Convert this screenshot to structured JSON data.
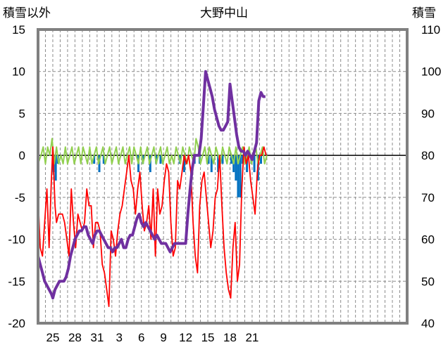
{
  "chart_data": {
    "type": "line",
    "title": "大野中山",
    "left_axis_label": "積雪以外",
    "right_axis_label": "積雪",
    "left_ylim": [
      -20,
      15
    ],
    "left_yticks": [
      15,
      10,
      5,
      0,
      -5,
      -10,
      -15,
      -20
    ],
    "right_ylim": [
      40,
      110
    ],
    "right_yticks": [
      110,
      100,
      90,
      80,
      70,
      60,
      50,
      40
    ],
    "x_range": [
      0,
      50
    ],
    "x_tick_labels": [
      "25",
      "28",
      "31",
      "3",
      "6",
      "9",
      "12",
      "15",
      "18",
      "21"
    ],
    "x_tick_positions": [
      2,
      5,
      8,
      11,
      14,
      17,
      20,
      23,
      26,
      29
    ],
    "grid": true,
    "series": [
      {
        "name": "temperature",
        "axis": "left",
        "color": "#ff0000",
        "type": "line",
        "x": [
          0.0,
          0.3,
          0.6,
          0.9,
          1.2,
          1.5,
          1.8,
          2.0,
          2.3,
          2.5,
          2.8,
          3.0,
          3.3,
          3.6,
          3.9,
          4.2,
          4.5,
          4.8,
          5.1,
          5.4,
          5.7,
          6.0,
          6.3,
          6.6,
          6.9,
          7.2,
          7.5,
          7.8,
          8.1,
          8.4,
          8.7,
          9.0,
          9.3,
          9.6,
          9.9,
          10.2,
          10.5,
          10.8,
          11.1,
          11.4,
          11.7,
          12.0,
          12.3,
          12.6,
          12.9,
          13.2,
          13.5,
          13.8,
          14.1,
          14.4,
          14.7,
          15.0,
          15.3,
          15.6,
          15.9,
          16.2,
          16.5,
          16.8,
          17.1,
          17.4,
          17.7,
          18.0,
          18.3,
          18.6,
          18.9,
          19.2,
          19.5,
          19.8,
          20.1,
          20.4,
          20.7,
          21.0,
          21.3,
          21.6,
          21.9,
          22.2,
          22.5,
          22.8,
          23.1,
          23.4,
          23.7,
          24.0,
          24.3,
          24.6,
          24.9,
          25.2,
          25.5,
          25.8,
          26.1,
          26.4,
          26.7,
          27.0,
          27.3,
          27.6,
          27.9,
          28.2,
          28.5,
          28.8,
          29.1,
          29.4,
          29.7,
          30.0,
          30.3,
          30.6,
          30.9
        ],
        "y": [
          -5,
          -11,
          -12,
          -8,
          -4,
          -11,
          -3,
          1,
          -6,
          -8,
          -7,
          -7,
          -7,
          -8,
          -10,
          -12,
          -4,
          -8,
          -11,
          -7,
          -8,
          -9,
          -8,
          -4,
          -6,
          -6,
          -11,
          -8,
          -8,
          -9,
          -13,
          -14,
          -16,
          -18,
          -9,
          -10,
          -12,
          -9,
          -7,
          -6,
          -4,
          -2,
          0,
          -3,
          -4,
          -7,
          -4,
          -2,
          -6,
          -9,
          -8,
          -6,
          -10,
          -4,
          -12,
          -4,
          -7,
          -6,
          -3,
          -1,
          -2,
          -8,
          -12,
          -11,
          -3,
          -4,
          -2,
          0,
          -1,
          0,
          -2,
          -8,
          -12,
          -14,
          -6,
          -3,
          -2,
          -5,
          -8,
          -11,
          -9,
          -5,
          -4,
          0,
          -6,
          -11,
          -14,
          -16,
          -17,
          -11,
          -8,
          -15,
          -13,
          -4,
          1,
          -1,
          0,
          -3,
          -5,
          -7,
          -2,
          0,
          0,
          1,
          0
        ]
      },
      {
        "name": "snow_depth",
        "axis": "right",
        "color": "#7030a0",
        "type": "line",
        "x": [
          0.0,
          0.3,
          0.6,
          0.9,
          1.2,
          1.5,
          1.8,
          2.0,
          2.3,
          2.6,
          2.9,
          3.2,
          3.5,
          3.8,
          4.1,
          4.4,
          4.7,
          5.0,
          5.3,
          5.6,
          5.9,
          6.2,
          6.5,
          6.8,
          7.1,
          7.4,
          7.7,
          8.0,
          8.3,
          8.6,
          8.9,
          9.2,
          9.5,
          9.8,
          10.1,
          10.4,
          10.7,
          11.0,
          11.3,
          11.6,
          11.9,
          12.2,
          12.5,
          12.8,
          13.1,
          13.4,
          13.7,
          14.0,
          14.3,
          14.6,
          14.9,
          15.2,
          15.5,
          15.8,
          16.1,
          16.4,
          16.7,
          17.0,
          17.3,
          17.6,
          17.9,
          18.2,
          18.5,
          18.8,
          19.1,
          19.4,
          19.7,
          20.0,
          20.3,
          20.6,
          20.9,
          21.2,
          21.5,
          21.8,
          22.1,
          22.4,
          22.7,
          23.0,
          23.3,
          23.6,
          23.9,
          24.2,
          24.5,
          24.8,
          25.1,
          25.4,
          25.7,
          26.0,
          26.3,
          26.6,
          26.9,
          27.2,
          27.5,
          27.8,
          28.1,
          28.4,
          28.7,
          29.0,
          29.3,
          29.6,
          29.9,
          30.2,
          30.5,
          30.8
        ],
        "y": [
          56,
          54,
          52,
          50,
          49,
          48,
          47,
          46,
          48,
          49,
          50,
          50,
          50,
          51,
          53,
          56,
          58,
          60,
          61,
          62,
          62,
          63,
          63,
          61,
          60,
          59,
          61,
          62,
          62,
          61,
          60,
          59,
          58,
          58,
          57,
          58,
          58,
          59,
          60,
          58,
          58,
          60,
          61,
          61,
          63,
          65,
          66,
          64,
          63,
          64,
          63,
          62,
          61,
          60,
          61,
          60,
          59,
          59,
          59,
          58,
          57,
          58,
          59,
          59,
          59,
          59,
          59,
          59,
          66,
          72,
          77,
          80,
          80,
          80,
          84,
          92,
          100,
          98,
          96,
          94,
          91,
          89,
          87,
          86,
          86,
          87,
          88,
          97,
          93,
          89,
          85,
          82,
          81,
          81,
          80,
          81,
          80,
          79,
          81,
          83,
          93,
          95,
          94,
          94
        ]
      },
      {
        "name": "sunshine_or_precip_green",
        "axis": "left",
        "color": "#92d050",
        "type": "line",
        "x": [
          0.0,
          0.4,
          0.7,
          1.0,
          1.3,
          1.6,
          1.9,
          2.2,
          2.5,
          2.8,
          3.1,
          3.4,
          3.7,
          4.0,
          4.3,
          4.6,
          4.9,
          5.2,
          5.5,
          5.8,
          6.1,
          6.4,
          6.7,
          7.0,
          7.3,
          7.6,
          7.9,
          8.2,
          8.5,
          8.8,
          9.1,
          9.4,
          9.7,
          10.0,
          10.3,
          10.6,
          10.9,
          11.2,
          11.5,
          11.8,
          12.1,
          12.4,
          12.7,
          13.0,
          13.3,
          13.6,
          13.9,
          14.2,
          14.5,
          14.8,
          15.1,
          15.4,
          15.7,
          16.0,
          16.3,
          16.6,
          16.9,
          17.2,
          17.5,
          17.8,
          18.1,
          18.4,
          18.7,
          19.0,
          19.3,
          19.6,
          19.9,
          20.2,
          20.5,
          20.8,
          21.1,
          21.4,
          21.7,
          22.0,
          22.3,
          22.6,
          22.9,
          23.2,
          23.5,
          23.8,
          24.1,
          24.4,
          24.7,
          25.0,
          25.3,
          25.6,
          25.9,
          26.2,
          26.5,
          26.8,
          27.1,
          27.4,
          27.7,
          28.0,
          28.3,
          28.6,
          28.9,
          29.2,
          29.5,
          29.8,
          30.1,
          30.4,
          30.7,
          31.0
        ],
        "y": [
          -1,
          0,
          1,
          -1,
          1,
          0,
          2,
          -1,
          1,
          -1,
          0,
          -1,
          1,
          -1,
          0,
          1,
          -1,
          0,
          1,
          -1,
          1,
          0,
          -1,
          1,
          -1,
          0,
          1,
          -1,
          0,
          1,
          -1,
          0,
          1,
          -1,
          0,
          1,
          -1,
          0,
          1,
          -1,
          0,
          1,
          -1,
          1,
          0,
          -1,
          1,
          -1,
          0,
          1,
          -1,
          0,
          1,
          -1,
          0,
          1,
          -1,
          0,
          1,
          -1,
          0,
          -1,
          1,
          0,
          -1,
          1,
          0,
          -1,
          1,
          0,
          -1,
          2,
          1,
          -1,
          0,
          1,
          -1,
          1,
          0,
          -1,
          1,
          0,
          -1,
          1,
          0,
          -1,
          1,
          0,
          -1,
          1,
          -1,
          0,
          1,
          -1,
          0,
          1,
          -1,
          0,
          1,
          -1,
          0,
          1,
          -1,
          0
        ]
      },
      {
        "name": "blue_bars",
        "axis": "left",
        "color": "#0070c0",
        "type": "bar",
        "x": [
          2.1,
          2.4,
          2.7,
          7.6,
          8.3,
          8.9,
          13.6,
          14.2,
          15.2,
          16.0,
          16.6,
          19.2,
          19.8,
          21.2,
          21.9,
          23.1,
          23.5,
          24.4,
          25.0,
          26.2,
          26.5,
          26.8,
          27.1,
          27.4,
          27.7,
          28.3,
          28.9,
          29.3,
          29.8,
          30.2
        ],
        "y": [
          -2,
          -3,
          -1,
          -1,
          -2,
          -1,
          -2,
          -1,
          -2,
          -1,
          -1,
          -1,
          -2,
          -1,
          -1,
          -1,
          -2,
          -2,
          -1,
          -1,
          -2,
          -3,
          -5,
          -5,
          -1,
          -2,
          -1,
          -2,
          -3,
          -1
        ]
      }
    ]
  }
}
